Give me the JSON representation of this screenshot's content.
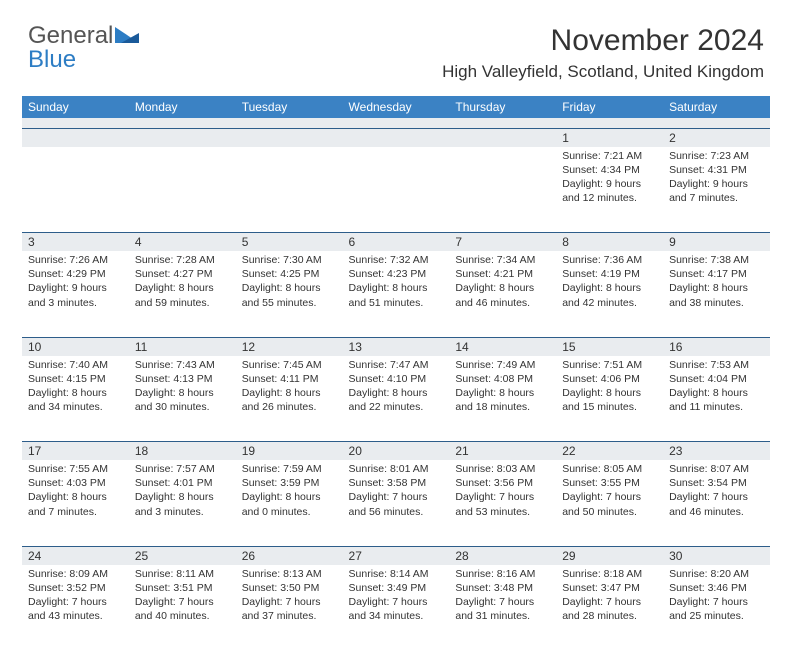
{
  "brand": {
    "text_gray": "General",
    "text_blue": "Blue"
  },
  "title": {
    "month": "November 2024",
    "location": "High Valleyfield, Scotland, United Kingdom"
  },
  "colors": {
    "header_bg": "#3b82c4",
    "num_row_bg": "#e9ecef",
    "divider": "#2d5d8a",
    "brand_blue": "#2d7dc4",
    "text": "#333333"
  },
  "day_names": [
    "Sunday",
    "Monday",
    "Tuesday",
    "Wednesday",
    "Thursday",
    "Friday",
    "Saturday"
  ],
  "weeks": [
    {
      "nums": [
        "",
        "",
        "",
        "",
        "",
        "1",
        "2"
      ],
      "cells": [
        null,
        null,
        null,
        null,
        null,
        {
          "sunrise": "Sunrise: 7:21 AM",
          "sunset": "Sunset: 4:34 PM",
          "daylight1": "Daylight: 9 hours",
          "daylight2": "and 12 minutes."
        },
        {
          "sunrise": "Sunrise: 7:23 AM",
          "sunset": "Sunset: 4:31 PM",
          "daylight1": "Daylight: 9 hours",
          "daylight2": "and 7 minutes."
        }
      ]
    },
    {
      "nums": [
        "3",
        "4",
        "5",
        "6",
        "7",
        "8",
        "9"
      ],
      "cells": [
        {
          "sunrise": "Sunrise: 7:26 AM",
          "sunset": "Sunset: 4:29 PM",
          "daylight1": "Daylight: 9 hours",
          "daylight2": "and 3 minutes."
        },
        {
          "sunrise": "Sunrise: 7:28 AM",
          "sunset": "Sunset: 4:27 PM",
          "daylight1": "Daylight: 8 hours",
          "daylight2": "and 59 minutes."
        },
        {
          "sunrise": "Sunrise: 7:30 AM",
          "sunset": "Sunset: 4:25 PM",
          "daylight1": "Daylight: 8 hours",
          "daylight2": "and 55 minutes."
        },
        {
          "sunrise": "Sunrise: 7:32 AM",
          "sunset": "Sunset: 4:23 PM",
          "daylight1": "Daylight: 8 hours",
          "daylight2": "and 51 minutes."
        },
        {
          "sunrise": "Sunrise: 7:34 AM",
          "sunset": "Sunset: 4:21 PM",
          "daylight1": "Daylight: 8 hours",
          "daylight2": "and 46 minutes."
        },
        {
          "sunrise": "Sunrise: 7:36 AM",
          "sunset": "Sunset: 4:19 PM",
          "daylight1": "Daylight: 8 hours",
          "daylight2": "and 42 minutes."
        },
        {
          "sunrise": "Sunrise: 7:38 AM",
          "sunset": "Sunset: 4:17 PM",
          "daylight1": "Daylight: 8 hours",
          "daylight2": "and 38 minutes."
        }
      ]
    },
    {
      "nums": [
        "10",
        "11",
        "12",
        "13",
        "14",
        "15",
        "16"
      ],
      "cells": [
        {
          "sunrise": "Sunrise: 7:40 AM",
          "sunset": "Sunset: 4:15 PM",
          "daylight1": "Daylight: 8 hours",
          "daylight2": "and 34 minutes."
        },
        {
          "sunrise": "Sunrise: 7:43 AM",
          "sunset": "Sunset: 4:13 PM",
          "daylight1": "Daylight: 8 hours",
          "daylight2": "and 30 minutes."
        },
        {
          "sunrise": "Sunrise: 7:45 AM",
          "sunset": "Sunset: 4:11 PM",
          "daylight1": "Daylight: 8 hours",
          "daylight2": "and 26 minutes."
        },
        {
          "sunrise": "Sunrise: 7:47 AM",
          "sunset": "Sunset: 4:10 PM",
          "daylight1": "Daylight: 8 hours",
          "daylight2": "and 22 minutes."
        },
        {
          "sunrise": "Sunrise: 7:49 AM",
          "sunset": "Sunset: 4:08 PM",
          "daylight1": "Daylight: 8 hours",
          "daylight2": "and 18 minutes."
        },
        {
          "sunrise": "Sunrise: 7:51 AM",
          "sunset": "Sunset: 4:06 PM",
          "daylight1": "Daylight: 8 hours",
          "daylight2": "and 15 minutes."
        },
        {
          "sunrise": "Sunrise: 7:53 AM",
          "sunset": "Sunset: 4:04 PM",
          "daylight1": "Daylight: 8 hours",
          "daylight2": "and 11 minutes."
        }
      ]
    },
    {
      "nums": [
        "17",
        "18",
        "19",
        "20",
        "21",
        "22",
        "23"
      ],
      "cells": [
        {
          "sunrise": "Sunrise: 7:55 AM",
          "sunset": "Sunset: 4:03 PM",
          "daylight1": "Daylight: 8 hours",
          "daylight2": "and 7 minutes."
        },
        {
          "sunrise": "Sunrise: 7:57 AM",
          "sunset": "Sunset: 4:01 PM",
          "daylight1": "Daylight: 8 hours",
          "daylight2": "and 3 minutes."
        },
        {
          "sunrise": "Sunrise: 7:59 AM",
          "sunset": "Sunset: 3:59 PM",
          "daylight1": "Daylight: 8 hours",
          "daylight2": "and 0 minutes."
        },
        {
          "sunrise": "Sunrise: 8:01 AM",
          "sunset": "Sunset: 3:58 PM",
          "daylight1": "Daylight: 7 hours",
          "daylight2": "and 56 minutes."
        },
        {
          "sunrise": "Sunrise: 8:03 AM",
          "sunset": "Sunset: 3:56 PM",
          "daylight1": "Daylight: 7 hours",
          "daylight2": "and 53 minutes."
        },
        {
          "sunrise": "Sunrise: 8:05 AM",
          "sunset": "Sunset: 3:55 PM",
          "daylight1": "Daylight: 7 hours",
          "daylight2": "and 50 minutes."
        },
        {
          "sunrise": "Sunrise: 8:07 AM",
          "sunset": "Sunset: 3:54 PM",
          "daylight1": "Daylight: 7 hours",
          "daylight2": "and 46 minutes."
        }
      ]
    },
    {
      "nums": [
        "24",
        "25",
        "26",
        "27",
        "28",
        "29",
        "30"
      ],
      "cells": [
        {
          "sunrise": "Sunrise: 8:09 AM",
          "sunset": "Sunset: 3:52 PM",
          "daylight1": "Daylight: 7 hours",
          "daylight2": "and 43 minutes."
        },
        {
          "sunrise": "Sunrise: 8:11 AM",
          "sunset": "Sunset: 3:51 PM",
          "daylight1": "Daylight: 7 hours",
          "daylight2": "and 40 minutes."
        },
        {
          "sunrise": "Sunrise: 8:13 AM",
          "sunset": "Sunset: 3:50 PM",
          "daylight1": "Daylight: 7 hours",
          "daylight2": "and 37 minutes."
        },
        {
          "sunrise": "Sunrise: 8:14 AM",
          "sunset": "Sunset: 3:49 PM",
          "daylight1": "Daylight: 7 hours",
          "daylight2": "and 34 minutes."
        },
        {
          "sunrise": "Sunrise: 8:16 AM",
          "sunset": "Sunset: 3:48 PM",
          "daylight1": "Daylight: 7 hours",
          "daylight2": "and 31 minutes."
        },
        {
          "sunrise": "Sunrise: 8:18 AM",
          "sunset": "Sunset: 3:47 PM",
          "daylight1": "Daylight: 7 hours",
          "daylight2": "and 28 minutes."
        },
        {
          "sunrise": "Sunrise: 8:20 AM",
          "sunset": "Sunset: 3:46 PM",
          "daylight1": "Daylight: 7 hours",
          "daylight2": "and 25 minutes."
        }
      ]
    }
  ]
}
